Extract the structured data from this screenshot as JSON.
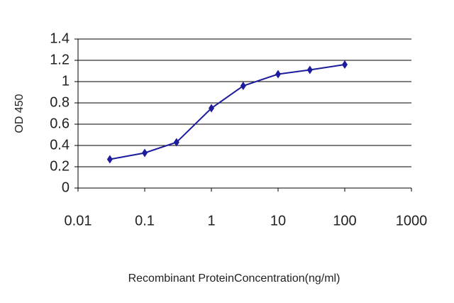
{
  "chart_data": {
    "type": "line",
    "x": [
      0.03,
      0.1,
      0.3,
      1,
      3,
      10,
      30,
      100
    ],
    "values": [
      0.27,
      0.33,
      0.43,
      0.75,
      0.96,
      1.07,
      1.11,
      1.16
    ],
    "color": "#1c1c9c",
    "x_label": "Recombinant ProteinConcentration(ng/ml)",
    "y_label": "OD 450",
    "xscale": "log",
    "xlim": [
      0.01,
      1000
    ],
    "xticks": [
      0.01,
      0.1,
      1,
      10,
      100,
      1000
    ],
    "ylim": [
      0,
      1.4
    ],
    "yticks": [
      0,
      0.2,
      0.4,
      0.6,
      0.8,
      1,
      1.2,
      1.4
    ],
    "grid": true
  }
}
